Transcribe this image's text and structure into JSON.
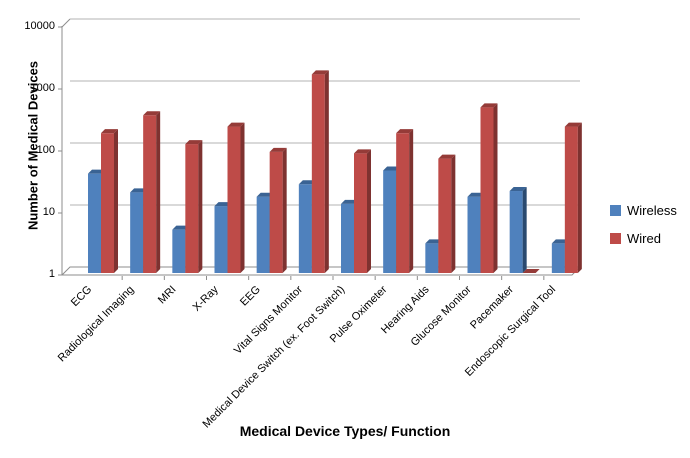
{
  "chart_data": {
    "type": "bar",
    "title": "",
    "xlabel": "Medical Device Types/ Function",
    "ylabel": "Number of Medical Devices",
    "y_scale": "log",
    "ylim": [
      1,
      10000
    ],
    "yticks": [
      1,
      10,
      100,
      1000,
      10000
    ],
    "grid": true,
    "legend_position": "right",
    "style": "3d-clustered-column",
    "categories": [
      "ECG",
      "Radiological Imaging",
      "MRI",
      "X-Ray",
      "EEG",
      "Vital Signs Monitor",
      "Medical Device Switch (ex. Foot Switch)",
      "Pulse Oximeter",
      "Hearing Aids",
      "Glucose Monitor",
      "Pacemaker",
      "Endoscopic Surgical Tool"
    ],
    "series": [
      {
        "name": "Wireless",
        "color": "#4F81BD",
        "color_top": "#3A6394",
        "color_side": "#2A4A70",
        "values": [
          40,
          20,
          5,
          12,
          17,
          27,
          13,
          45,
          3,
          17,
          21,
          3
        ]
      },
      {
        "name": "Wired",
        "color": "#BE4B48",
        "color_top": "#953B38",
        "color_side": "#7E3230",
        "values": [
          180,
          350,
          120,
          230,
          90,
          1600,
          85,
          180,
          70,
          470,
          1,
          230
        ]
      }
    ]
  },
  "colors": {
    "background": "#FFFFFF",
    "gridline": "#B3B3B3",
    "axis_line": "#8C8C8C",
    "text": "#000000"
  }
}
